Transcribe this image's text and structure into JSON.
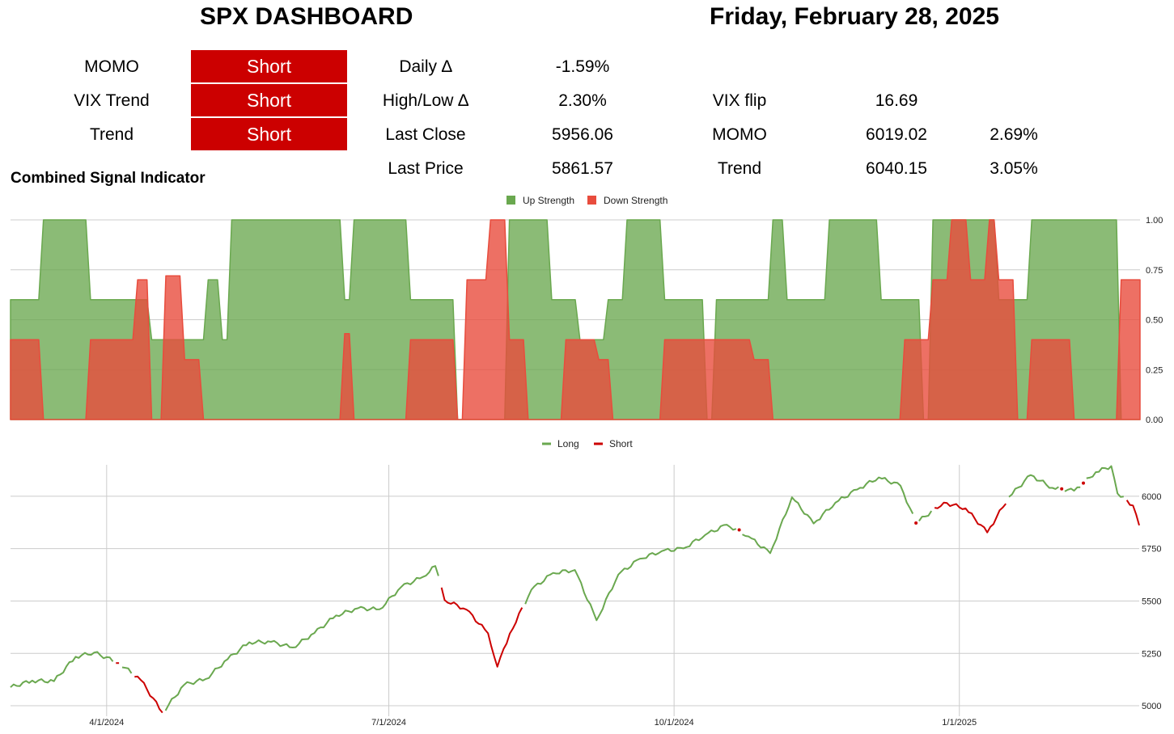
{
  "header": {
    "title": "SPX DASHBOARD",
    "date": "Friday, February 28, 2025"
  },
  "signals": [
    {
      "label": "MOMO",
      "value": "Short"
    },
    {
      "label": "VIX Trend",
      "value": "Short"
    },
    {
      "label": "Trend",
      "value": "Short"
    }
  ],
  "stats": [
    {
      "label": "Daily ∆",
      "value": "-1.59%"
    },
    {
      "label": "High/Low ∆",
      "value": "2.30%"
    },
    {
      "label": "Last Close",
      "value": "5956.06"
    },
    {
      "label": "Last Price",
      "value": "5861.57"
    }
  ],
  "levels": [
    {
      "label": "VIX flip",
      "value": "16.69",
      "pct": ""
    },
    {
      "label": "MOMO",
      "value": "6019.02",
      "pct": "2.69%"
    },
    {
      "label": "Trend",
      "value": "6040.15",
      "pct": "3.05%"
    }
  ],
  "section_title": "Combined Signal Indicator",
  "colors": {
    "signal_bg": "#cc0000",
    "up": "#6aa84f",
    "down": "#e84c3d",
    "long": "#6aa84f",
    "short": "#cc0000"
  },
  "chart_data": [
    {
      "type": "area",
      "title": "Combined Signal Indicator",
      "legend_position": "top",
      "ylim": [
        0,
        1
      ],
      "ytick_labels": [
        "1.00",
        "0.75",
        "0.50",
        "0.25",
        "0.00"
      ],
      "grid": true,
      "n_points": 240,
      "series": [
        {
          "name": "Up Strength",
          "color": "#6aa84f",
          "segments": [
            [
              0,
              7,
              0.6
            ],
            [
              7,
              17,
              1.0
            ],
            [
              17,
              27,
              0.6
            ],
            [
              27,
              30,
              0.6
            ],
            [
              30,
              35,
              0.4
            ],
            [
              35,
              42,
              0.4
            ],
            [
              42,
              45,
              0.7
            ],
            [
              45,
              47,
              0.4
            ],
            [
              47,
              50,
              1.0
            ],
            [
              50,
              71,
              1.0
            ],
            [
              71,
              73,
              0.6
            ],
            [
              73,
              85,
              1.0
            ],
            [
              85,
              95,
              0.6
            ],
            [
              95,
              102,
              0.0
            ],
            [
              102,
              106,
              0.0
            ],
            [
              106,
              115,
              1.0
            ],
            [
              115,
              121,
              0.6
            ],
            [
              121,
              127,
              0.4
            ],
            [
              127,
              131,
              0.6
            ],
            [
              131,
              139,
              1.0
            ],
            [
              139,
              148,
              0.6
            ],
            [
              148,
              150,
              0.0
            ],
            [
              150,
              156,
              0.6
            ],
            [
              156,
              162,
              0.6
            ],
            [
              162,
              165,
              1.0
            ],
            [
              165,
              174,
              0.6
            ],
            [
              174,
              185,
              1.0
            ],
            [
              185,
              194,
              0.6
            ],
            [
              194,
              196,
              0.0
            ],
            [
              196,
              210,
              1.0
            ],
            [
              210,
              217,
              0.6
            ],
            [
              217,
              221,
              1.0
            ],
            [
              221,
              230,
              1.0
            ],
            [
              230,
              236,
              1.0
            ],
            [
              236,
              240,
              0.0
            ]
          ]
        },
        {
          "name": "Down Strength",
          "color": "#e84c3d",
          "segments": [
            [
              0,
              7,
              0.4
            ],
            [
              7,
              17,
              0.0
            ],
            [
              17,
              27,
              0.4
            ],
            [
              27,
              30,
              0.7
            ],
            [
              30,
              33,
              0.0
            ],
            [
              33,
              37,
              0.72
            ],
            [
              37,
              41,
              0.3
            ],
            [
              41,
              47,
              0.0
            ],
            [
              47,
              71,
              0.0
            ],
            [
              71,
              73,
              0.43
            ],
            [
              73,
              85,
              0.0
            ],
            [
              85,
              95,
              0.4
            ],
            [
              95,
              97,
              0.0
            ],
            [
              97,
              102,
              0.7
            ],
            [
              102,
              106,
              1.0
            ],
            [
              106,
              110,
              0.4
            ],
            [
              110,
              118,
              0.0
            ],
            [
              118,
              125,
              0.4
            ],
            [
              125,
              128,
              0.3
            ],
            [
              128,
              139,
              0.0
            ],
            [
              139,
              150,
              0.4
            ],
            [
              150,
              156,
              0.4
            ],
            [
              156,
              158,
              0.4
            ],
            [
              158,
              162,
              0.3
            ],
            [
              162,
              190,
              0.0
            ],
            [
              190,
              196,
              0.4
            ],
            [
              196,
              200,
              0.7
            ],
            [
              200,
              204,
              1.0
            ],
            [
              204,
              208,
              0.7
            ],
            [
              208,
              210,
              1.0
            ],
            [
              210,
              214,
              0.7
            ],
            [
              214,
              217,
              0.0
            ],
            [
              217,
              220,
              0.4
            ],
            [
              220,
              226,
              0.4
            ],
            [
              226,
              236,
              0.0
            ],
            [
              236,
              240,
              0.7
            ]
          ]
        }
      ]
    },
    {
      "type": "line",
      "legend_position": "top",
      "ylim": [
        4950,
        6150
      ],
      "ytick_labels": [
        "6000",
        "5750",
        "5500",
        "5250",
        "5000"
      ],
      "xtick_labels": [
        "4/1/2024",
        "7/1/2024",
        "10/1/2024",
        "1/1/2025"
      ],
      "x_range": [
        "3/1/2024",
        "2/28/2025"
      ],
      "grid": true,
      "series": [
        {
          "name": "Long",
          "color": "#6aa84f"
        },
        {
          "name": "Short",
          "color": "#cc0000"
        }
      ],
      "anchors": [
        {
          "d": "2024-03-01",
          "v": 5088
        },
        {
          "d": "2024-03-08",
          "v": 5120
        },
        {
          "d": "2024-03-15",
          "v": 5117
        },
        {
          "d": "2024-03-22",
          "v": 5234
        },
        {
          "d": "2024-03-28",
          "v": 5254
        },
        {
          "d": "2024-04-05",
          "v": 5204
        },
        {
          "d": "2024-04-12",
          "v": 5123
        },
        {
          "d": "2024-04-19",
          "v": 4967
        },
        {
          "d": "2024-04-26",
          "v": 5100
        },
        {
          "d": "2024-05-03",
          "v": 5128
        },
        {
          "d": "2024-05-10",
          "v": 5222
        },
        {
          "d": "2024-05-17",
          "v": 5303
        },
        {
          "d": "2024-05-24",
          "v": 5305
        },
        {
          "d": "2024-05-31",
          "v": 5278
        },
        {
          "d": "2024-06-07",
          "v": 5347
        },
        {
          "d": "2024-06-14",
          "v": 5431
        },
        {
          "d": "2024-06-21",
          "v": 5465
        },
        {
          "d": "2024-06-28",
          "v": 5460
        },
        {
          "d": "2024-07-05",
          "v": 5567
        },
        {
          "d": "2024-07-12",
          "v": 5615
        },
        {
          "d": "2024-07-16",
          "v": 5667
        },
        {
          "d": "2024-07-19",
          "v": 5505
        },
        {
          "d": "2024-07-26",
          "v": 5459
        },
        {
          "d": "2024-08-02",
          "v": 5346
        },
        {
          "d": "2024-08-05",
          "v": 5186
        },
        {
          "d": "2024-08-09",
          "v": 5344
        },
        {
          "d": "2024-08-16",
          "v": 5554
        },
        {
          "d": "2024-08-23",
          "v": 5634
        },
        {
          "d": "2024-08-30",
          "v": 5648
        },
        {
          "d": "2024-09-06",
          "v": 5408
        },
        {
          "d": "2024-09-13",
          "v": 5626
        },
        {
          "d": "2024-09-20",
          "v": 5702
        },
        {
          "d": "2024-09-27",
          "v": 5738
        },
        {
          "d": "2024-10-04",
          "v": 5751
        },
        {
          "d": "2024-10-11",
          "v": 5815
        },
        {
          "d": "2024-10-18",
          "v": 5864
        },
        {
          "d": "2024-10-25",
          "v": 5808
        },
        {
          "d": "2024-11-01",
          "v": 5728
        },
        {
          "d": "2024-11-08",
          "v": 5995
        },
        {
          "d": "2024-11-15",
          "v": 5870
        },
        {
          "d": "2024-11-22",
          "v": 5969
        },
        {
          "d": "2024-11-29",
          "v": 6032
        },
        {
          "d": "2024-12-06",
          "v": 6090
        },
        {
          "d": "2024-12-13",
          "v": 6051
        },
        {
          "d": "2024-12-18",
          "v": 5872
        },
        {
          "d": "2024-12-27",
          "v": 5970
        },
        {
          "d": "2025-01-03",
          "v": 5942
        },
        {
          "d": "2025-01-10",
          "v": 5827
        },
        {
          "d": "2025-01-17",
          "v": 5997
        },
        {
          "d": "2025-01-24",
          "v": 6101
        },
        {
          "d": "2025-01-31",
          "v": 6040
        },
        {
          "d": "2025-02-07",
          "v": 6026
        },
        {
          "d": "2025-02-14",
          "v": 6115
        },
        {
          "d": "2025-02-19",
          "v": 6144
        },
        {
          "d": "2025-02-21",
          "v": 6013
        },
        {
          "d": "2025-02-26",
          "v": 5956
        },
        {
          "d": "2025-02-28",
          "v": 5861
        }
      ],
      "short_ranges": [
        [
          "2024-04-04",
          "2024-04-05"
        ],
        [
          "2024-04-10",
          "2024-04-19"
        ],
        [
          "2024-07-18",
          "2024-08-13"
        ],
        [
          "2024-10-22",
          "2024-10-22"
        ],
        [
          "2024-12-18",
          "2024-12-18"
        ],
        [
          "2024-12-24",
          "2025-01-16"
        ],
        [
          "2025-02-03",
          "2025-02-03"
        ],
        [
          "2025-02-10",
          "2025-02-10"
        ],
        [
          "2025-02-24",
          "2025-02-28"
        ]
      ]
    }
  ]
}
